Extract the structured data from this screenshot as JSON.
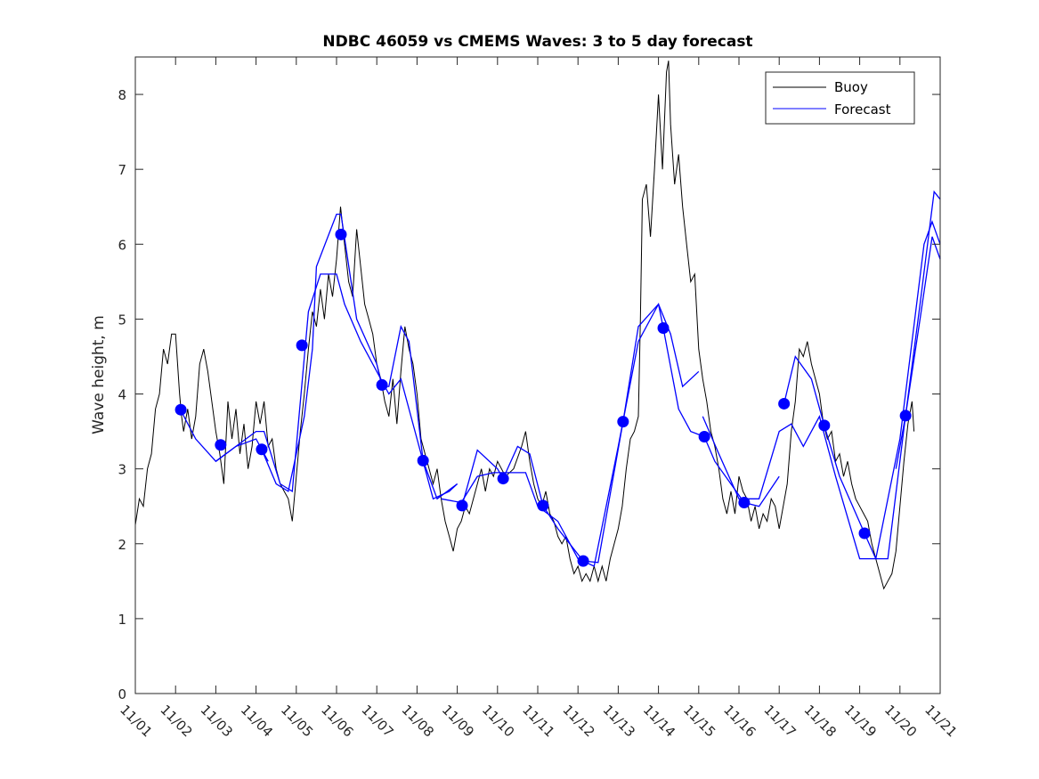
{
  "chart_data": {
    "type": "line",
    "title": "NDBC 46059 vs CMEMS Waves: 3 to 5 day forecast",
    "xlabel": "",
    "ylabel": "Wave height, m",
    "xlim_days": [
      0,
      20
    ],
    "ylim": [
      0,
      8.5
    ],
    "y_ticks": [
      0,
      1,
      2,
      3,
      4,
      5,
      6,
      7,
      8
    ],
    "x_ticks": [
      "11/01",
      "11/02",
      "11/03",
      "11/04",
      "11/05",
      "11/06",
      "11/07",
      "11/08",
      "11/09",
      "11/10",
      "11/11",
      "11/12",
      "11/13",
      "11/14",
      "11/15",
      "11/16",
      "11/17",
      "11/18",
      "11/19",
      "11/20",
      "11/21"
    ],
    "legend": {
      "position": "top-right",
      "entries": [
        "Buoy",
        "Forecast"
      ]
    },
    "colors": {
      "buoy": "#000000",
      "forecast": "#0000ff"
    },
    "buoy": [
      [
        0,
        2.25
      ],
      [
        0.1,
        2.6
      ],
      [
        0.2,
        2.5
      ],
      [
        0.3,
        3.0
      ],
      [
        0.4,
        3.2
      ],
      [
        0.5,
        3.8
      ],
      [
        0.6,
        4.0
      ],
      [
        0.7,
        4.6
      ],
      [
        0.8,
        4.4
      ],
      [
        0.9,
        4.8
      ],
      [
        1.0,
        4.8
      ],
      [
        1.1,
        4.0
      ],
      [
        1.15,
        3.7
      ],
      [
        1.2,
        3.5
      ],
      [
        1.3,
        3.8
      ],
      [
        1.4,
        3.4
      ],
      [
        1.5,
        3.7
      ],
      [
        1.6,
        4.4
      ],
      [
        1.7,
        4.6
      ],
      [
        1.8,
        4.3
      ],
      [
        1.9,
        3.9
      ],
      [
        2.0,
        3.5
      ],
      [
        2.1,
        3.2
      ],
      [
        2.2,
        2.8
      ],
      [
        2.3,
        3.9
      ],
      [
        2.4,
        3.4
      ],
      [
        2.5,
        3.8
      ],
      [
        2.6,
        3.2
      ],
      [
        2.7,
        3.6
      ],
      [
        2.8,
        3.0
      ],
      [
        2.9,
        3.3
      ],
      [
        3.0,
        3.9
      ],
      [
        3.1,
        3.6
      ],
      [
        3.2,
        3.9
      ],
      [
        3.3,
        3.3
      ],
      [
        3.4,
        3.4
      ],
      [
        3.5,
        3.0
      ],
      [
        3.6,
        2.8
      ],
      [
        3.7,
        2.7
      ],
      [
        3.8,
        2.6
      ],
      [
        3.9,
        2.3
      ],
      [
        4.0,
        2.9
      ],
      [
        4.1,
        3.5
      ],
      [
        4.2,
        4.0
      ],
      [
        4.3,
        4.6
      ],
      [
        4.4,
        5.1
      ],
      [
        4.5,
        4.9
      ],
      [
        4.6,
        5.4
      ],
      [
        4.7,
        5.0
      ],
      [
        4.8,
        5.6
      ],
      [
        4.9,
        5.3
      ],
      [
        5.0,
        5.8
      ],
      [
        5.1,
        6.5
      ],
      [
        5.2,
        6.0
      ],
      [
        5.3,
        5.5
      ],
      [
        5.4,
        5.3
      ],
      [
        5.5,
        6.2
      ],
      [
        5.6,
        5.7
      ],
      [
        5.7,
        5.2
      ],
      [
        5.8,
        5.0
      ],
      [
        5.9,
        4.8
      ],
      [
        6.0,
        4.4
      ],
      [
        6.1,
        4.2
      ],
      [
        6.2,
        3.9
      ],
      [
        6.3,
        3.7
      ],
      [
        6.4,
        4.2
      ],
      [
        6.5,
        3.6
      ],
      [
        6.6,
        4.3
      ],
      [
        6.7,
        4.9
      ],
      [
        6.8,
        4.6
      ],
      [
        6.9,
        4.4
      ],
      [
        7.0,
        4.0
      ],
      [
        7.1,
        3.4
      ],
      [
        7.2,
        3.2
      ],
      [
        7.3,
        3.0
      ],
      [
        7.4,
        2.8
      ],
      [
        7.5,
        3.0
      ],
      [
        7.6,
        2.6
      ],
      [
        7.7,
        2.3
      ],
      [
        7.8,
        2.1
      ],
      [
        7.9,
        1.9
      ],
      [
        8.0,
        2.2
      ],
      [
        8.1,
        2.3
      ],
      [
        8.2,
        2.5
      ],
      [
        8.3,
        2.4
      ],
      [
        8.4,
        2.6
      ],
      [
        8.5,
        2.8
      ],
      [
        8.6,
        3.0
      ],
      [
        8.7,
        2.7
      ],
      [
        8.8,
        3.0
      ],
      [
        8.9,
        2.9
      ],
      [
        9.0,
        3.1
      ],
      [
        9.2,
        2.9
      ],
      [
        9.4,
        3.0
      ],
      [
        9.6,
        3.3
      ],
      [
        9.7,
        3.5
      ],
      [
        9.8,
        3.1
      ],
      [
        9.9,
        2.8
      ],
      [
        10.0,
        2.6
      ],
      [
        10.1,
        2.5
      ],
      [
        10.2,
        2.7
      ],
      [
        10.3,
        2.4
      ],
      [
        10.4,
        2.3
      ],
      [
        10.5,
        2.1
      ],
      [
        10.6,
        2.0
      ],
      [
        10.7,
        2.1
      ],
      [
        10.8,
        1.8
      ],
      [
        10.9,
        1.6
      ],
      [
        11.0,
        1.7
      ],
      [
        11.1,
        1.5
      ],
      [
        11.2,
        1.6
      ],
      [
        11.3,
        1.5
      ],
      [
        11.4,
        1.7
      ],
      [
        11.5,
        1.5
      ],
      [
        11.6,
        1.7
      ],
      [
        11.7,
        1.5
      ],
      [
        11.8,
        1.8
      ],
      [
        11.9,
        2.0
      ],
      [
        12.0,
        2.2
      ],
      [
        12.1,
        2.5
      ],
      [
        12.2,
        3.0
      ],
      [
        12.3,
        3.4
      ],
      [
        12.4,
        3.5
      ],
      [
        12.5,
        3.7
      ],
      [
        12.55,
        5.0
      ],
      [
        12.6,
        6.6
      ],
      [
        12.7,
        6.8
      ],
      [
        12.8,
        6.1
      ],
      [
        12.9,
        7.0
      ],
      [
        13.0,
        8.0
      ],
      [
        13.1,
        7.0
      ],
      [
        13.2,
        8.3
      ],
      [
        13.25,
        8.45
      ],
      [
        13.3,
        7.6
      ],
      [
        13.4,
        6.8
      ],
      [
        13.5,
        7.2
      ],
      [
        13.6,
        6.5
      ],
      [
        13.7,
        6.0
      ],
      [
        13.8,
        5.5
      ],
      [
        13.9,
        5.6
      ],
      [
        14.0,
        4.6
      ],
      [
        14.1,
        4.2
      ],
      [
        14.2,
        3.9
      ],
      [
        14.3,
        3.5
      ],
      [
        14.4,
        3.3
      ],
      [
        14.5,
        3.0
      ],
      [
        14.6,
        2.6
      ],
      [
        14.7,
        2.4
      ],
      [
        14.8,
        2.7
      ],
      [
        14.9,
        2.4
      ],
      [
        15.0,
        2.9
      ],
      [
        15.1,
        2.7
      ],
      [
        15.2,
        2.6
      ],
      [
        15.3,
        2.3
      ],
      [
        15.4,
        2.5
      ],
      [
        15.5,
        2.2
      ],
      [
        15.6,
        2.4
      ],
      [
        15.7,
        2.3
      ],
      [
        15.8,
        2.6
      ],
      [
        15.9,
        2.5
      ],
      [
        16.0,
        2.2
      ],
      [
        16.1,
        2.5
      ],
      [
        16.2,
        2.8
      ],
      [
        16.3,
        3.5
      ],
      [
        16.4,
        3.9
      ],
      [
        16.5,
        4.6
      ],
      [
        16.6,
        4.5
      ],
      [
        16.7,
        4.7
      ],
      [
        16.8,
        4.4
      ],
      [
        16.9,
        4.2
      ],
      [
        17.0,
        4.0
      ],
      [
        17.1,
        3.6
      ],
      [
        17.2,
        3.4
      ],
      [
        17.3,
        3.5
      ],
      [
        17.4,
        3.1
      ],
      [
        17.5,
        3.2
      ],
      [
        17.6,
        2.9
      ],
      [
        17.7,
        3.1
      ],
      [
        17.8,
        2.8
      ],
      [
        17.9,
        2.6
      ],
      [
        18.0,
        2.5
      ],
      [
        18.1,
        2.4
      ],
      [
        18.2,
        2.3
      ],
      [
        18.3,
        2.0
      ],
      [
        18.4,
        1.8
      ],
      [
        18.5,
        1.6
      ],
      [
        18.6,
        1.4
      ],
      [
        18.7,
        1.5
      ],
      [
        18.8,
        1.6
      ],
      [
        18.9,
        1.9
      ],
      [
        19.0,
        2.5
      ],
      [
        19.1,
        3.1
      ],
      [
        19.2,
        3.6
      ],
      [
        19.3,
        3.9
      ],
      [
        19.35,
        3.5
      ]
    ],
    "forecast_segments": [
      [
        [
          1.13,
          3.78
        ],
        [
          1.5,
          3.4
        ],
        [
          2.0,
          3.1
        ],
        [
          2.5,
          3.3
        ],
        [
          3.0,
          3.4
        ],
        [
          3.3,
          3.1
        ]
      ],
      [
        [
          2.0,
          3.1
        ],
        [
          2.5,
          3.3
        ],
        [
          3.0,
          3.5
        ],
        [
          3.2,
          3.5
        ],
        [
          3.6,
          2.8
        ],
        [
          3.9,
          2.7
        ],
        [
          4.3,
          5.1
        ],
        [
          4.6,
          5.6
        ],
        [
          5.0,
          5.6
        ],
        [
          5.2,
          5.2
        ],
        [
          5.6,
          4.7
        ],
        [
          6.0,
          4.3
        ],
        [
          6.3,
          4.0
        ],
        [
          6.6,
          4.2
        ],
        [
          7.0,
          3.4
        ],
        [
          7.4,
          2.6
        ],
        [
          7.8,
          2.7
        ],
        [
          8.0,
          2.8
        ]
      ],
      [
        [
          3.14,
          3.26
        ],
        [
          3.5,
          2.8
        ],
        [
          3.8,
          2.7
        ],
        [
          4.2,
          3.7
        ],
        [
          4.4,
          4.6
        ],
        [
          4.5,
          5.7
        ],
        [
          5.0,
          6.4
        ],
        [
          5.11,
          6.4
        ],
        [
          5.5,
          5.0
        ],
        [
          6.0,
          4.4
        ],
        [
          6.13,
          4.1
        ],
        [
          6.3,
          4.1
        ],
        [
          6.6,
          4.9
        ],
        [
          6.8,
          4.7
        ],
        [
          7.15,
          3.11
        ],
        [
          7.5,
          2.6
        ],
        [
          8.0,
          2.8
        ]
      ],
      [
        [
          7.6,
          2.6
        ],
        [
          8.1,
          2.55
        ],
        [
          8.5,
          2.9
        ],
        [
          8.9,
          2.95
        ],
        [
          9.4,
          2.95
        ],
        [
          9.7,
          2.95
        ],
        [
          10.0,
          2.5
        ],
        [
          10.5,
          2.3
        ],
        [
          11.0,
          1.8
        ],
        [
          11.4,
          1.7
        ],
        [
          12.0,
          3.3
        ],
        [
          12.5,
          4.7
        ],
        [
          13.0,
          5.2
        ],
        [
          13.3,
          4.8
        ],
        [
          13.6,
          4.1
        ],
        [
          14.0,
          4.3
        ]
      ],
      [
        [
          8.12,
          2.51
        ],
        [
          8.5,
          3.25
        ],
        [
          9.0,
          3.0
        ],
        [
          9.14,
          2.87
        ],
        [
          9.5,
          3.3
        ],
        [
          9.8,
          3.2
        ],
        [
          10.13,
          2.51
        ],
        [
          10.5,
          2.2
        ],
        [
          11.13,
          1.77
        ],
        [
          11.5,
          1.75
        ],
        [
          12.12,
          3.63
        ],
        [
          12.5,
          4.9
        ],
        [
          13.0,
          5.2
        ],
        [
          13.12,
          4.88
        ],
        [
          13.5,
          3.8
        ],
        [
          13.8,
          3.5
        ],
        [
          14.14,
          3.43
        ],
        [
          14.4,
          3.1
        ],
        [
          15.13,
          2.55
        ],
        [
          15.5,
          2.5
        ],
        [
          16.0,
          2.9
        ]
      ],
      [
        [
          14.1,
          3.7
        ],
        [
          14.5,
          3.2
        ],
        [
          15.0,
          2.6
        ],
        [
          15.5,
          2.6
        ],
        [
          16.0,
          3.5
        ],
        [
          16.3,
          3.6
        ],
        [
          16.6,
          3.3
        ],
        [
          17.0,
          3.7
        ],
        [
          17.4,
          2.9
        ],
        [
          18.0,
          1.8
        ],
        [
          18.4,
          1.8
        ],
        [
          19.0,
          3.4
        ],
        [
          19.6,
          6.0
        ],
        [
          19.8,
          6.3
        ],
        [
          20.0,
          6.0
        ]
      ],
      [
        [
          16.12,
          3.87
        ],
        [
          16.4,
          4.5
        ],
        [
          16.8,
          4.2
        ],
        [
          17.12,
          3.58
        ],
        [
          17.5,
          2.9
        ],
        [
          18.12,
          2.14
        ],
        [
          18.4,
          1.8
        ],
        [
          18.7,
          1.8
        ],
        [
          19.14,
          3.71
        ],
        [
          19.5,
          5.2
        ],
        [
          19.85,
          6.7
        ],
        [
          20.0,
          6.6
        ]
      ],
      [
        [
          18.9,
          3.0
        ],
        [
          19.14,
          3.71
        ],
        [
          19.5,
          5.0
        ],
        [
          19.8,
          6.1
        ],
        [
          20.0,
          5.8
        ]
      ]
    ],
    "forecast_markers": [
      [
        1.13,
        3.79
      ],
      [
        2.12,
        3.32
      ],
      [
        3.14,
        3.26
      ],
      [
        4.14,
        4.65
      ],
      [
        5.11,
        6.13
      ],
      [
        6.13,
        4.12
      ],
      [
        7.15,
        3.11
      ],
      [
        8.12,
        2.51
      ],
      [
        9.14,
        2.87
      ],
      [
        10.13,
        2.51
      ],
      [
        11.13,
        1.77
      ],
      [
        12.12,
        3.63
      ],
      [
        13.12,
        4.88
      ],
      [
        14.14,
        3.43
      ],
      [
        15.13,
        2.55
      ],
      [
        16.12,
        3.87
      ],
      [
        17.12,
        3.58
      ],
      [
        18.12,
        2.14
      ],
      [
        19.14,
        3.71
      ]
    ]
  }
}
